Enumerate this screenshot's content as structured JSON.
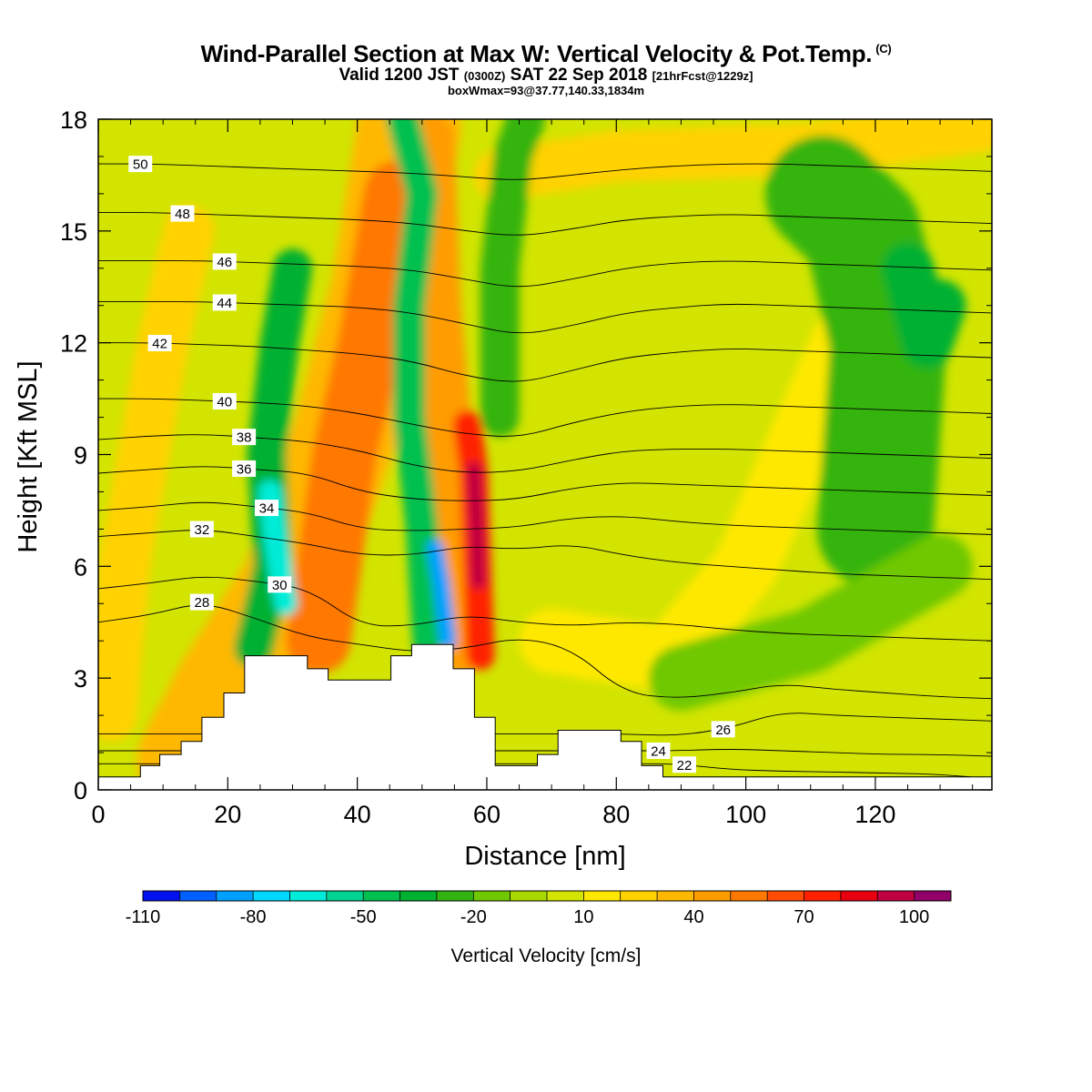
{
  "header": {
    "title": "Wind-Parallel Section at Max W: Vertical Velocity & Pot.Temp.",
    "copyright": "(C)",
    "valid_prefix": "Valid 1200 JST",
    "valid_utc": "(0300Z)",
    "valid_date": "SAT 22 Sep 2018",
    "forecast": "[21hrFcst@1229z]",
    "box_info": "boxWmax=93@37.77,140.33,1834m"
  },
  "chart_data": {
    "type": "heatmap",
    "xlabel": "Distance [nm]",
    "ylabel": "Height [Kft MSL]",
    "xlim": [
      0,
      138
    ],
    "ylim": [
      0,
      18
    ],
    "xticks": [
      "0",
      "20",
      "40",
      "60",
      "80",
      "100",
      "120"
    ],
    "yticks": [
      "0",
      "3",
      "6",
      "9",
      "12",
      "15",
      "18"
    ],
    "colorbar": {
      "label": "Vertical Velocity [cm/s]",
      "tick_labels": [
        "-110",
        "-80",
        "-50",
        "-20",
        "10",
        "40",
        "70",
        "100"
      ],
      "levels": [
        -110,
        -100,
        -90,
        -80,
        -70,
        -60,
        -50,
        -40,
        -30,
        -20,
        -10,
        0,
        10,
        20,
        30,
        40,
        50,
        60,
        70,
        80,
        90,
        100,
        110
      ],
      "colors": [
        "#0010ee",
        "#0060ff",
        "#00a0ff",
        "#00d8ff",
        "#00ecd8",
        "#00d290",
        "#00c050",
        "#00b030",
        "#34b410",
        "#70c800",
        "#a8d800",
        "#d2e400",
        "#ffe800",
        "#ffd200",
        "#ffb800",
        "#ff9c00",
        "#ff7800",
        "#ff4c00",
        "#ff2000",
        "#e80010",
        "#c00040",
        "#900068",
        "#6a0090"
      ]
    },
    "terrain_kft": [
      [
        0,
        0.35
      ],
      [
        6.5,
        0.35
      ],
      [
        6.5,
        0.65
      ],
      [
        9.5,
        0.65
      ],
      [
        9.5,
        0.95
      ],
      [
        12.8,
        0.95
      ],
      [
        12.8,
        1.3
      ],
      [
        16,
        1.3
      ],
      [
        16,
        1.95
      ],
      [
        19.4,
        1.95
      ],
      [
        19.4,
        2.6
      ],
      [
        22.6,
        2.6
      ],
      [
        22.6,
        3.6
      ],
      [
        32.3,
        3.6
      ],
      [
        32.3,
        3.25
      ],
      [
        35.5,
        3.25
      ],
      [
        35.5,
        2.95
      ],
      [
        45.2,
        2.95
      ],
      [
        45.2,
        3.6
      ],
      [
        48.4,
        3.6
      ],
      [
        48.4,
        3.9
      ],
      [
        54.8,
        3.9
      ],
      [
        54.8,
        3.25
      ],
      [
        58.1,
        3.25
      ],
      [
        58.1,
        1.95
      ],
      [
        61.3,
        1.95
      ],
      [
        61.3,
        0.65
      ],
      [
        67.8,
        0.65
      ],
      [
        67.8,
        0.95
      ],
      [
        71,
        0.95
      ],
      [
        71,
        1.6
      ],
      [
        80.7,
        1.6
      ],
      [
        80.7,
        1.3
      ],
      [
        83.9,
        1.3
      ],
      [
        83.9,
        0.65
      ],
      [
        87.2,
        0.65
      ],
      [
        87.2,
        0.35
      ],
      [
        138,
        0.35
      ]
    ],
    "theta_contours": [
      {
        "label": "22",
        "label_x": 90.5,
        "kft": [
          0.7,
          0.7,
          0.7,
          0.7,
          0.7,
          0.7,
          0.7,
          0.7,
          0.7,
          0.7,
          0.7,
          0.7,
          0.55,
          0.5,
          0.48,
          0.45,
          0.42,
          0.3
        ]
      },
      {
        "label": "24",
        "label_x": 86.5,
        "kft": [
          1.05,
          1.05,
          1.05,
          1.05,
          1.05,
          1.05,
          1.05,
          1.05,
          1.05,
          1.05,
          1.05,
          1.05,
          1.1,
          1.05,
          1.0,
          0.95,
          0.95,
          0.9
        ]
      },
      {
        "label": "26",
        "label_x": 96.5,
        "kft": [
          1.5,
          1.5,
          1.5,
          1.5,
          1.5,
          1.5,
          1.5,
          1.5,
          1.5,
          1.5,
          1.5,
          1.45,
          1.65,
          2.1,
          2.0,
          1.95,
          1.9,
          1.85
        ]
      },
      {
        "label": "28",
        "label_x": 16,
        "kft": [
          4.5,
          4.7,
          5.05,
          4.6,
          4.1,
          3.9,
          3.7,
          3.8,
          4.1,
          3.8,
          2.6,
          2.45,
          2.6,
          2.85,
          2.7,
          2.6,
          2.5,
          2.45
        ]
      },
      {
        "label": "30",
        "label_x": 28,
        "kft": [
          5.4,
          5.55,
          5.75,
          5.6,
          5.4,
          4.4,
          4.4,
          4.7,
          4.5,
          4.4,
          4.5,
          4.45,
          4.3,
          4.2,
          4.15,
          4.1,
          4.05,
          4.0
        ]
      },
      {
        "label": "32",
        "label_x": 16,
        "kft": [
          6.8,
          6.9,
          7.0,
          6.8,
          6.6,
          6.3,
          6.3,
          6.55,
          6.45,
          6.6,
          6.3,
          6.1,
          6.0,
          5.9,
          5.8,
          5.75,
          5.7,
          5.65
        ]
      },
      {
        "label": "34",
        "label_x": 26,
        "kft": [
          7.5,
          7.6,
          7.75,
          7.6,
          7.45,
          7.0,
          6.95,
          7.0,
          7.05,
          7.3,
          7.35,
          7.2,
          7.1,
          7.05,
          7.0,
          6.95,
          6.9,
          6.85
        ]
      },
      {
        "label": "36",
        "label_x": 22.5,
        "kft": [
          8.5,
          8.6,
          8.7,
          8.6,
          8.5,
          8.0,
          7.8,
          7.75,
          7.8,
          8.1,
          8.25,
          8.2,
          8.15,
          8.1,
          8.05,
          8.0,
          7.95,
          7.9
        ]
      },
      {
        "label": "38",
        "label_x": 22.5,
        "kft": [
          9.4,
          9.5,
          9.55,
          9.45,
          9.35,
          9.1,
          8.7,
          8.5,
          8.55,
          8.85,
          9.1,
          9.15,
          9.15,
          9.1,
          9.05,
          9.0,
          8.95,
          8.9
        ]
      },
      {
        "label": "40",
        "label_x": 19.5,
        "kft": [
          10.5,
          10.5,
          10.45,
          10.4,
          10.3,
          10.1,
          9.8,
          9.55,
          9.45,
          9.85,
          10.15,
          10.3,
          10.35,
          10.3,
          10.25,
          10.2,
          10.15,
          10.1
        ]
      },
      {
        "label": "42",
        "label_x": 9.5,
        "kft": [
          12.0,
          12.0,
          11.95,
          11.9,
          11.8,
          11.7,
          11.5,
          11.1,
          10.9,
          11.25,
          11.6,
          11.75,
          11.85,
          11.8,
          11.75,
          11.7,
          11.65,
          11.6
        ]
      },
      {
        "label": "44",
        "label_x": 19.5,
        "kft": [
          13.1,
          13.1,
          13.1,
          13.05,
          13.0,
          12.95,
          12.8,
          12.5,
          12.2,
          12.45,
          12.8,
          12.95,
          13.05,
          13.0,
          12.95,
          12.9,
          12.85,
          12.8
        ]
      },
      {
        "label": "46",
        "label_x": 19.5,
        "kft": [
          14.2,
          14.2,
          14.2,
          14.15,
          14.1,
          14.05,
          13.95,
          13.7,
          13.45,
          13.7,
          14.0,
          14.15,
          14.2,
          14.15,
          14.1,
          14.05,
          14.0,
          13.95
        ]
      },
      {
        "label": "48",
        "label_x": 13,
        "kft": [
          15.5,
          15.5,
          15.45,
          15.4,
          15.35,
          15.3,
          15.2,
          15.0,
          14.85,
          15.05,
          15.3,
          15.4,
          15.45,
          15.4,
          15.35,
          15.3,
          15.25,
          15.2
        ]
      },
      {
        "label": "50",
        "label_x": 6.5,
        "kft": [
          16.8,
          16.8,
          16.75,
          16.7,
          16.65,
          16.6,
          16.55,
          16.45,
          16.35,
          16.5,
          16.65,
          16.75,
          16.8,
          16.8,
          16.75,
          16.7,
          16.65,
          16.6
        ]
      }
    ]
  }
}
